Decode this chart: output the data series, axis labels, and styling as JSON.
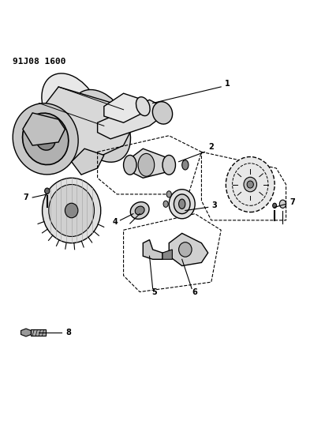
{
  "title_code": "91J08 1600",
  "bg_color": "#ffffff",
  "line_color": "#000000"
}
